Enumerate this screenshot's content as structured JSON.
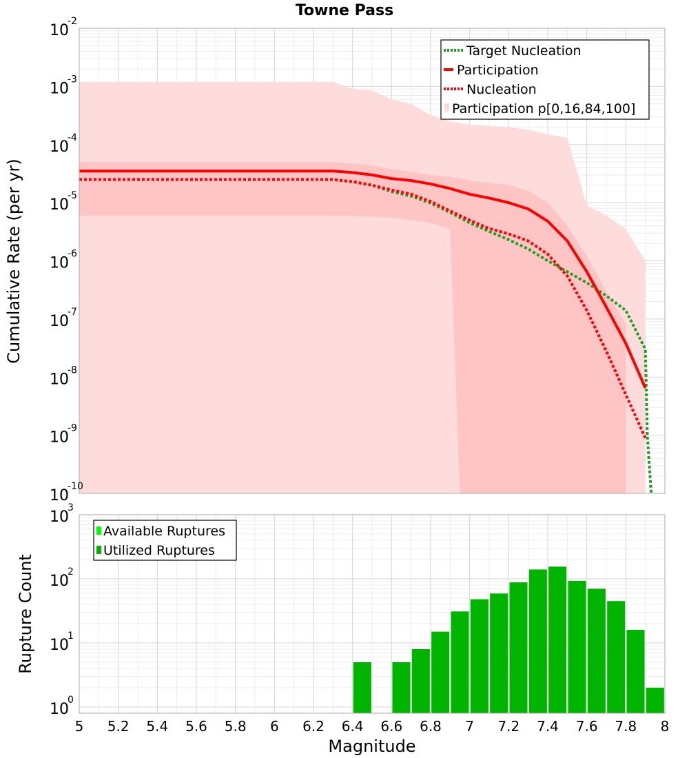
{
  "chart_data": [
    {
      "type": "line",
      "title": "Towne Pass",
      "xlabel": "",
      "ylabel": "Cumulative Rate (per yr)",
      "yscale": "log",
      "xlim": [
        5,
        8
      ],
      "ylim": [
        1e-10,
        0.01
      ],
      "ytick_exponents": [
        "-2",
        "-3",
        "-4",
        "-5",
        "-6",
        "-7",
        "-8",
        "-9",
        "-10"
      ],
      "grid": true,
      "legend_position": "top-right",
      "legend": [
        "Target Nucleation",
        "Participation",
        "Nucleation",
        "Participation p[0,16,84,100]"
      ],
      "colors": {
        "target": "#1ea01e",
        "participation": "#ff0000",
        "band_outer": "#ffdcdc",
        "band_inner": "#ffc4c4"
      },
      "series": [
        {
          "name": "Target Nucleation",
          "style": "dotted",
          "color": "#1ea01e",
          "x": [
            5.0,
            6.3,
            6.4,
            6.5,
            6.6,
            6.7,
            6.8,
            6.9,
            7.0,
            7.1,
            7.2,
            7.3,
            7.4,
            7.5,
            7.6,
            7.7,
            7.8,
            7.9,
            7.91,
            7.93
          ],
          "y": [
            2.5e-05,
            2.5e-05,
            2.3e-05,
            2e-05,
            1.55e-05,
            1.3e-05,
            9.8e-06,
            6.8e-06,
            4.5e-06,
            3.2e-06,
            2.3e-06,
            1.6e-06,
            1e-06,
            6.5e-07,
            4.2e-07,
            2.5e-07,
            1.4e-07,
            3e-08,
            1e-09,
            1e-10
          ]
        },
        {
          "name": "Participation",
          "style": "solid",
          "color": "#ff0000",
          "x": [
            5.0,
            6.3,
            6.4,
            6.5,
            6.6,
            6.7,
            6.8,
            6.9,
            7.0,
            7.1,
            7.2,
            7.3,
            7.4,
            7.5,
            7.6,
            7.7,
            7.8,
            7.9
          ],
          "y": [
            3.5e-05,
            3.5e-05,
            3.3e-05,
            3e-05,
            2.6e-05,
            2.4e-05,
            2.1e-05,
            1.75e-05,
            1.4e-05,
            1.2e-05,
            1e-05,
            7.8e-06,
            4.8e-06,
            2.2e-06,
            6.5e-07,
            1.6e-07,
            3.8e-08,
            6.5e-09
          ]
        },
        {
          "name": "Nucleation",
          "style": "dotted",
          "color": "#ff0000",
          "x": [
            5.0,
            6.3,
            6.4,
            6.5,
            6.6,
            6.7,
            6.8,
            6.9,
            7.0,
            7.1,
            7.2,
            7.3,
            7.4,
            7.5,
            7.6,
            7.7,
            7.8,
            7.9
          ],
          "y": [
            2.5e-05,
            2.5e-05,
            2.3e-05,
            2e-05,
            1.65e-05,
            1.4e-05,
            1.05e-05,
            7.2e-06,
            5e-06,
            3.6e-06,
            2.9e-06,
            2.2e-06,
            1.3e-06,
            5.5e-07,
            1.4e-07,
            2.8e-08,
            5e-09,
            9e-10
          ]
        }
      ],
      "bands": [
        {
          "name": "Participation p[0,16,84,100]",
          "kind": "p0-p100",
          "color": "#ffdcdc",
          "x": [
            5.0,
            6.3,
            6.4,
            6.5,
            6.6,
            6.7,
            6.8,
            6.9,
            7.0,
            7.1,
            7.2,
            7.3,
            7.4,
            7.5,
            7.6,
            7.7,
            7.8,
            7.9
          ],
          "upper": [
            0.0012,
            0.0012,
            0.0009,
            0.00085,
            0.0006,
            0.0005,
            0.00032,
            0.00025,
            0.00022,
            0.00021,
            0.0002,
            0.00018,
            0.00015,
            0.00013,
            9e-06,
            6e-06,
            3.5e-06,
            1e-06
          ],
          "lower": [
            1e-10,
            1e-10,
            1e-10,
            1e-10,
            1e-10,
            1e-10,
            1e-10,
            1e-10,
            1e-10,
            1e-10,
            1e-10,
            1e-10,
            1e-10,
            1e-10,
            1e-10,
            1e-10,
            1e-10,
            1e-10
          ]
        },
        {
          "name": "Participation p[0,16,84,100]",
          "kind": "p16-p84",
          "color": "#ffc4c4",
          "x": [
            5.0,
            6.3,
            6.4,
            6.5,
            6.6,
            6.7,
            6.8,
            6.85,
            6.9,
            6.95,
            7.0,
            7.1,
            7.2,
            7.3,
            7.4,
            7.5,
            7.6,
            7.7,
            7.8
          ],
          "upper": [
            5e-05,
            5e-05,
            4.7e-05,
            4.4e-05,
            3.8e-05,
            3.4e-05,
            3e-05,
            2.9e-05,
            2.8e-05,
            2.6e-05,
            2.4e-05,
            2.2e-05,
            2e-05,
            1.6e-05,
            1e-05,
            4e-06,
            1.2e-06,
            3e-07,
            8e-08
          ],
          "lower": [
            6e-06,
            6e-06,
            5.9e-06,
            5.8e-06,
            5.5e-06,
            5e-06,
            4.5e-06,
            4e-06,
            3.5e-06,
            1e-10,
            1e-10,
            1e-10,
            1e-10,
            1e-10,
            1e-10,
            1e-10,
            1e-10,
            1e-10,
            1e-10
          ]
        }
      ]
    },
    {
      "type": "bar",
      "xlabel": "Magnitude",
      "ylabel": "Rupture Count",
      "yscale": "log",
      "xlim": [
        5,
        8
      ],
      "ylim": [
        0.8,
        1000
      ],
      "ytick_exponents": [
        "3",
        "2",
        "1",
        "0"
      ],
      "xticks": [
        "5",
        "5.2",
        "5.4",
        "5.6",
        "5.8",
        "6",
        "6.2",
        "6.4",
        "6.6",
        "6.8",
        "7",
        "7.2",
        "7.4",
        "7.6",
        "7.8",
        "8"
      ],
      "grid": true,
      "legend_position": "top-left",
      "legend": [
        "Available Ruptures",
        "Utilized Ruptures"
      ],
      "colors": {
        "available": "#00ff00",
        "utilized": "#00b400"
      },
      "series": [
        {
          "name": "Utilized Ruptures",
          "color": "#00b400",
          "x": [
            6.45,
            6.65,
            6.75,
            6.85,
            6.95,
            7.05,
            7.15,
            7.25,
            7.35,
            7.45,
            7.55,
            7.65,
            7.75,
            7.85,
            7.95
          ],
          "values": [
            5,
            5,
            8,
            15,
            31,
            48,
            59,
            88,
            140,
            155,
            93,
            70,
            45,
            16,
            2
          ]
        }
      ]
    }
  ]
}
